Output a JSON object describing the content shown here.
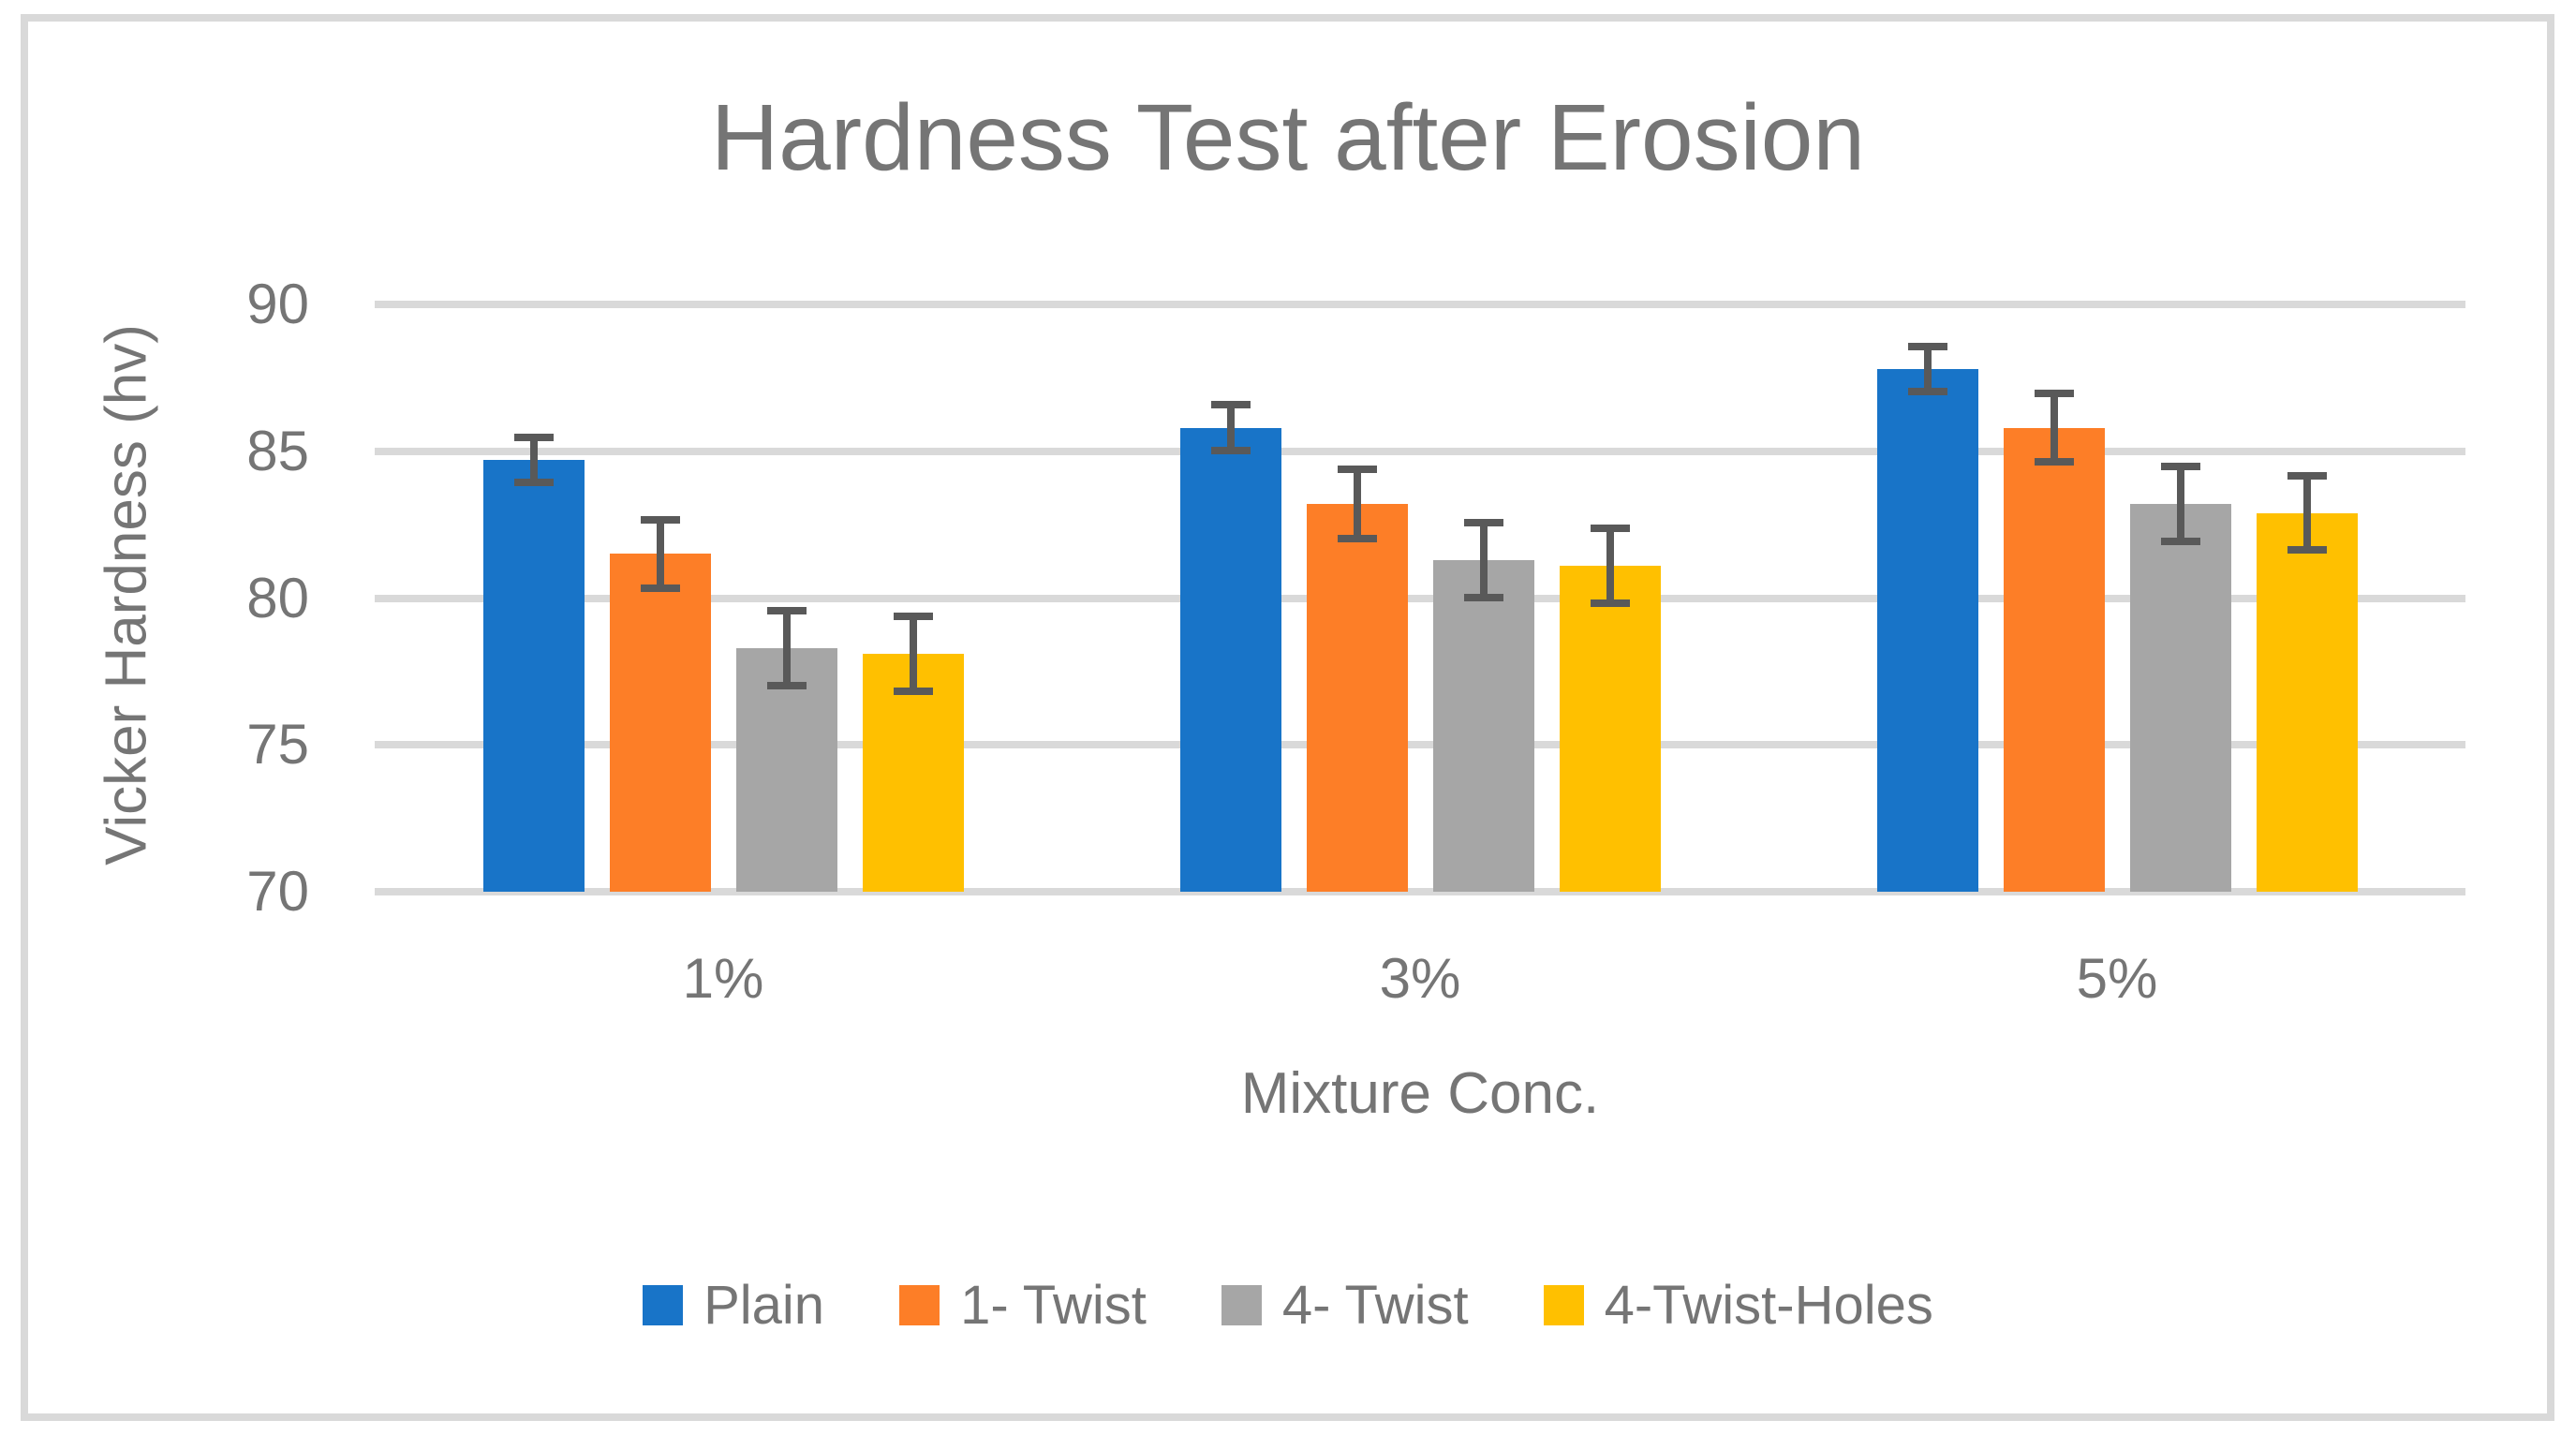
{
  "title": "Hardness Test after Erosion",
  "chart_data": {
    "type": "bar",
    "title": "Hardness Test after Erosion",
    "xlabel": "Mixture Conc.",
    "ylabel": "Vicker Hardness (hv)",
    "categories": [
      "1%",
      "3%",
      "5%"
    ],
    "series": [
      {
        "name": "Plain",
        "color": "#1874C8",
        "values": [
          84.7,
          85.8,
          87.8
        ],
        "errors": [
          0.9,
          0.9,
          0.9
        ]
      },
      {
        "name": "1- Twist",
        "color": "#FD7E27",
        "values": [
          81.5,
          83.2,
          85.8
        ],
        "errors": [
          1.3,
          1.3,
          1.3
        ]
      },
      {
        "name": "4- Twist",
        "color": "#A6A6A6",
        "values": [
          78.3,
          81.3,
          83.2
        ],
        "errors": [
          1.4,
          1.4,
          1.4
        ]
      },
      {
        "name": "4-Twist-Holes",
        "color": "#FFC000",
        "values": [
          78.1,
          81.1,
          82.9
        ],
        "errors": [
          1.4,
          1.4,
          1.4
        ]
      }
    ],
    "ylim": [
      70,
      90
    ],
    "yticks": [
      90,
      85,
      80,
      75,
      70
    ],
    "grid": true,
    "legend_position": "bottom",
    "error_bar_color": "#595959",
    "gridline_color": "#D9D9D9",
    "border_color": "#D9D9D9",
    "text_color": "#757575"
  }
}
